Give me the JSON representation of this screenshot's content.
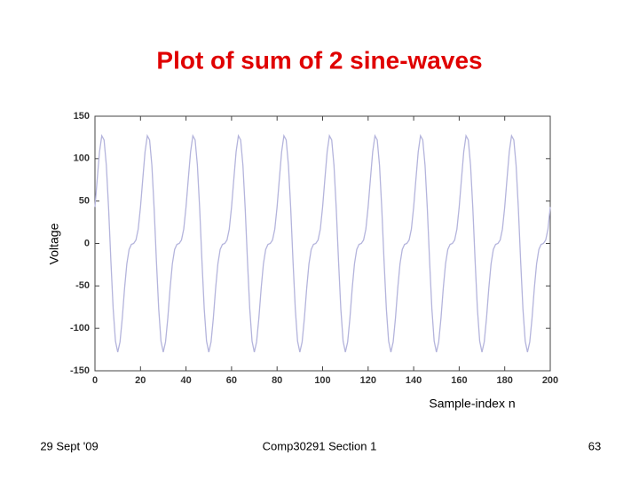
{
  "chart_data": {
    "type": "line",
    "title": "Plot of sum of 2 sine-waves",
    "xlabel": "Sample-index n",
    "ylabel": "Voltage",
    "x": [
      0,
      1,
      2,
      3,
      4,
      5,
      6,
      7,
      8,
      9,
      10,
      11,
      12,
      13,
      14,
      15,
      16,
      17,
      18,
      19,
      20,
      21,
      22,
      23,
      24,
      25,
      26,
      27,
      28,
      29,
      30,
      31,
      32,
      33,
      34,
      35,
      36,
      37,
      38,
      39,
      40,
      41,
      42,
      43,
      44,
      45,
      46,
      47,
      48,
      49,
      50,
      51,
      52,
      53,
      54,
      55,
      56,
      57,
      58,
      59,
      60,
      61,
      62,
      63,
      64,
      65,
      66,
      67,
      68,
      69,
      70,
      71,
      72,
      73,
      74,
      75,
      76,
      77,
      78,
      79,
      80,
      81,
      82,
      83,
      84,
      85,
      86,
      87,
      88,
      89,
      90,
      91,
      92,
      93,
      94,
      95,
      96,
      97,
      98,
      99,
      100,
      101,
      102,
      103,
      104,
      105,
      106,
      107,
      108,
      109,
      110,
      111,
      112,
      113,
      114,
      115,
      116,
      117,
      118,
      119,
      120,
      121,
      122,
      123,
      124,
      125,
      126,
      127,
      128,
      129,
      130,
      131,
      132,
      133,
      134,
      135,
      136,
      137,
      138,
      139,
      140,
      141,
      142,
      143,
      144,
      145,
      146,
      147,
      148,
      149,
      150,
      151,
      152,
      153,
      154,
      155,
      156,
      157,
      158,
      159,
      160,
      161,
      162,
      163,
      164,
      165,
      166,
      167,
      168,
      169,
      170,
      171,
      172,
      173,
      174,
      175,
      176,
      177,
      178,
      179,
      180,
      181,
      182,
      183,
      184,
      185,
      186,
      187,
      188,
      189,
      190,
      191,
      192,
      193,
      194,
      195,
      196,
      197,
      198,
      199,
      200
    ],
    "series": [
      {
        "color": "#b4b4dc",
        "values": [
          43,
          76,
          108,
          127,
          122,
          92,
          41,
          -21,
          -77,
          -115,
          -128,
          -116,
          -88,
          -53,
          -24,
          -7,
          -1,
          0,
          4,
          17,
          43,
          76,
          108,
          127,
          122,
          92,
          41,
          -21,
          -77,
          -115,
          -128,
          -116,
          -88,
          -53,
          -24,
          -7,
          -1,
          0,
          4,
          17,
          43,
          76,
          108,
          127,
          122,
          92,
          41,
          -21,
          -77,
          -115,
          -128,
          -116,
          -88,
          -53,
          -24,
          -7,
          -1,
          0,
          4,
          17,
          43,
          76,
          108,
          127,
          122,
          92,
          41,
          -21,
          -77,
          -115,
          -128,
          -116,
          -88,
          -53,
          -24,
          -7,
          -1,
          0,
          4,
          17,
          43,
          76,
          108,
          127,
          122,
          92,
          41,
          -21,
          -77,
          -115,
          -128,
          -116,
          -88,
          -53,
          -24,
          -7,
          -1,
          0,
          4,
          17,
          43,
          76,
          108,
          127,
          122,
          92,
          41,
          -21,
          -77,
          -115,
          -128,
          -116,
          -88,
          -53,
          -24,
          -7,
          -1,
          0,
          4,
          17,
          43,
          76,
          108,
          127,
          122,
          92,
          41,
          -21,
          -77,
          -115,
          -128,
          -116,
          -88,
          -53,
          -24,
          -7,
          -1,
          0,
          4,
          17,
          43,
          76,
          108,
          127,
          122,
          92,
          41,
          -21,
          -77,
          -115,
          -128,
          -116,
          -88,
          -53,
          -24,
          -7,
          -1,
          0,
          4,
          17,
          43,
          76,
          108,
          127,
          122,
          92,
          41,
          -21,
          -77,
          -115,
          -128,
          -116,
          -88,
          -53,
          -24,
          -7,
          -1,
          0,
          4,
          17,
          43,
          76,
          108,
          127,
          122,
          92,
          41,
          -21,
          -77,
          -115,
          -128,
          -116,
          -88,
          -53,
          -24,
          -7,
          -1,
          0,
          4,
          17,
          43
        ]
      }
    ],
    "xlim": [
      0,
      200
    ],
    "xticks": [
      0,
      20,
      40,
      60,
      80,
      100,
      120,
      140,
      160,
      180,
      200
    ],
    "ylim": [
      -150,
      150
    ],
    "yticks": [
      -150,
      -100,
      -50,
      0,
      50,
      100,
      150
    ],
    "grid": false
  },
  "footer": {
    "date": "29 Sept '09",
    "course": "Comp30291 Section 1",
    "page": "63"
  }
}
